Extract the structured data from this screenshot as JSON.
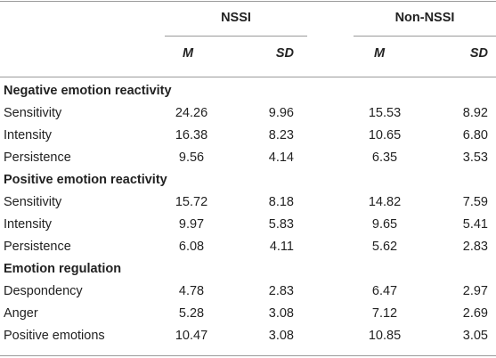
{
  "table": {
    "groups": [
      "NSSI",
      "Non-NSSI"
    ],
    "subheaders": [
      "M",
      "SD",
      "M",
      "SD"
    ],
    "sections": [
      {
        "title": "Negative emotion reactivity",
        "rows": [
          {
            "label": "Sensitivity",
            "values": [
              "24.26",
              "9.96",
              "15.53",
              "8.92"
            ]
          },
          {
            "label": "Intensity",
            "values": [
              "16.38",
              "8.23",
              "10.65",
              "6.80"
            ]
          },
          {
            "label": "Persistence",
            "values": [
              "9.56",
              "4.14",
              "6.35",
              "3.53"
            ]
          }
        ]
      },
      {
        "title": "Positive emotion reactivity",
        "rows": [
          {
            "label": "Sensitivity",
            "values": [
              "15.72",
              "8.18",
              "14.82",
              "7.59"
            ]
          },
          {
            "label": "Intensity",
            "values": [
              "9.97",
              "5.83",
              "9.65",
              "5.41"
            ]
          },
          {
            "label": "Persistence",
            "values": [
              "6.08",
              "4.11",
              "5.62",
              "2.83"
            ]
          }
        ]
      },
      {
        "title": "Emotion regulation",
        "rows": [
          {
            "label": "Despondency",
            "values": [
              "4.78",
              "2.83",
              "6.47",
              "2.97"
            ]
          },
          {
            "label": "Anger",
            "values": [
              "5.28",
              "3.08",
              "7.12",
              "2.69"
            ]
          },
          {
            "label": "Positive emotions",
            "values": [
              "10.47",
              "3.08",
              "10.85",
              "3.05"
            ]
          }
        ]
      }
    ]
  }
}
